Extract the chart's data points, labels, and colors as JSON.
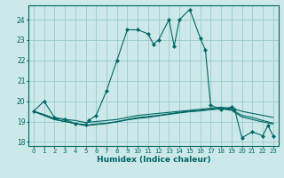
{
  "xlabel": "Humidex (Indice chaleur)",
  "bg_color": "#cce8e8",
  "grid_color": "#99cccc",
  "line_color": "#006666",
  "xlim": [
    -0.5,
    23.5
  ],
  "ylim": [
    17.8,
    24.7
  ],
  "yticks": [
    18,
    19,
    20,
    21,
    22,
    23,
    24
  ],
  "xticks": [
    0,
    1,
    2,
    3,
    4,
    5,
    6,
    7,
    8,
    9,
    10,
    11,
    12,
    13,
    14,
    15,
    16,
    17,
    18,
    19,
    20,
    21,
    22,
    23
  ],
  "x_main": [
    0,
    1,
    2,
    3,
    4,
    5,
    5.3,
    6,
    7,
    8,
    9,
    10,
    11,
    11.5,
    12,
    13,
    13.5,
    14,
    15,
    16,
    16.5,
    17,
    18,
    19,
    19.3,
    20,
    21,
    22,
    22.5,
    23
  ],
  "y_main": [
    19.5,
    20.0,
    19.2,
    19.1,
    18.9,
    18.85,
    19.05,
    19.3,
    20.5,
    22.0,
    23.5,
    23.5,
    23.3,
    22.8,
    23.0,
    24.0,
    22.7,
    24.0,
    24.5,
    23.1,
    22.5,
    19.8,
    19.6,
    19.7,
    19.6,
    18.2,
    18.5,
    18.3,
    18.8,
    18.3
  ],
  "x_flat": [
    0,
    1,
    2,
    3,
    4,
    5,
    6,
    7,
    8,
    9,
    10,
    11,
    12,
    13,
    14,
    15,
    16,
    17,
    18,
    19,
    20,
    21,
    22,
    23
  ],
  "y_flat1": [
    19.5,
    19.35,
    19.15,
    19.1,
    19.05,
    18.95,
    19.0,
    19.05,
    19.1,
    19.2,
    19.3,
    19.35,
    19.4,
    19.45,
    19.5,
    19.55,
    19.6,
    19.65,
    19.7,
    19.65,
    19.5,
    19.4,
    19.3,
    19.2
  ],
  "y_flat2": [
    19.5,
    19.3,
    19.1,
    19.0,
    18.9,
    18.82,
    18.88,
    18.92,
    19.0,
    19.1,
    19.2,
    19.25,
    19.3,
    19.38,
    19.45,
    19.5,
    19.55,
    19.6,
    19.65,
    19.6,
    19.3,
    19.2,
    19.05,
    18.92
  ],
  "y_flat3": [
    19.5,
    19.3,
    19.1,
    19.0,
    18.9,
    18.8,
    18.85,
    18.9,
    18.98,
    19.08,
    19.15,
    19.2,
    19.28,
    19.35,
    19.42,
    19.48,
    19.52,
    19.58,
    19.62,
    19.55,
    19.22,
    19.1,
    18.98,
    18.88
  ]
}
